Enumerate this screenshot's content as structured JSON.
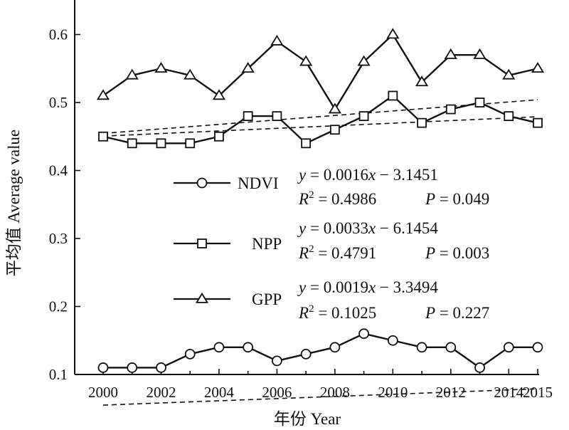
{
  "chart_data": {
    "type": "line",
    "xlabel": "年份 Year",
    "ylabel": "平均值 Average value",
    "xlim": [
      2000,
      2015
    ],
    "ylim": [
      0.1,
      0.65
    ],
    "xticks": [
      2000,
      2002,
      2004,
      2006,
      2008,
      2010,
      2012,
      2014,
      2015
    ],
    "yticks": [
      0.1,
      0.2,
      0.3,
      0.4,
      0.5,
      0.6
    ],
    "grid": false,
    "legend_position": "center",
    "x": [
      2000,
      2001,
      2002,
      2003,
      2004,
      2005,
      2006,
      2007,
      2008,
      2009,
      2010,
      2011,
      2012,
      2013,
      2014,
      2015
    ],
    "series": [
      {
        "name": "NDVI",
        "marker": "circle",
        "values": [
          0.11,
          0.11,
          0.11,
          0.13,
          0.14,
          0.14,
          0.12,
          0.13,
          0.14,
          0.16,
          0.15,
          0.14,
          0.14,
          0.11,
          0.14,
          0.14
        ],
        "trend": {
          "slope": 0.0016,
          "intercept": -3.1451
        },
        "equation": {
          "y_prefix": "y",
          "eq_body": " = 0.0016",
          "x_var": "x",
          "eq_tail": " − 3.1451",
          "r_label": "R",
          "r_sup": "2",
          "r_body": " = 0.4986",
          "p_label": "P",
          "p_body": " = 0.049"
        }
      },
      {
        "name": "NPP",
        "marker": "square",
        "values": [
          0.45,
          0.44,
          0.44,
          0.44,
          0.45,
          0.48,
          0.48,
          0.44,
          0.46,
          0.48,
          0.51,
          0.47,
          0.49,
          0.5,
          0.48,
          0.47
        ],
        "trend": {
          "slope": 0.0033,
          "intercept": -6.1454
        },
        "equation": {
          "y_prefix": "y",
          "eq_body": " = 0.0033",
          "x_var": "x",
          "eq_tail": " − 6.1454",
          "r_label": "R",
          "r_sup": "2",
          "r_body": " = 0.4791",
          "p_label": "P",
          "p_body": " = 0.003"
        }
      },
      {
        "name": "GPP",
        "marker": "triangle",
        "values": [
          0.51,
          0.54,
          0.55,
          0.54,
          0.51,
          0.55,
          0.59,
          0.56,
          0.49,
          0.56,
          0.6,
          0.53,
          0.57,
          0.57,
          0.54,
          0.55
        ],
        "trend": {
          "slope": 0.0019,
          "intercept": -3.3494
        },
        "equation": {
          "y_prefix": "y",
          "eq_body": " = 0.0019",
          "x_var": "x",
          "eq_tail": " − 3.3494",
          "r_label": "R",
          "r_sup": "2",
          "r_body": " = 0.1025",
          "p_label": "P",
          "p_body": " = 0.227"
        }
      }
    ]
  }
}
